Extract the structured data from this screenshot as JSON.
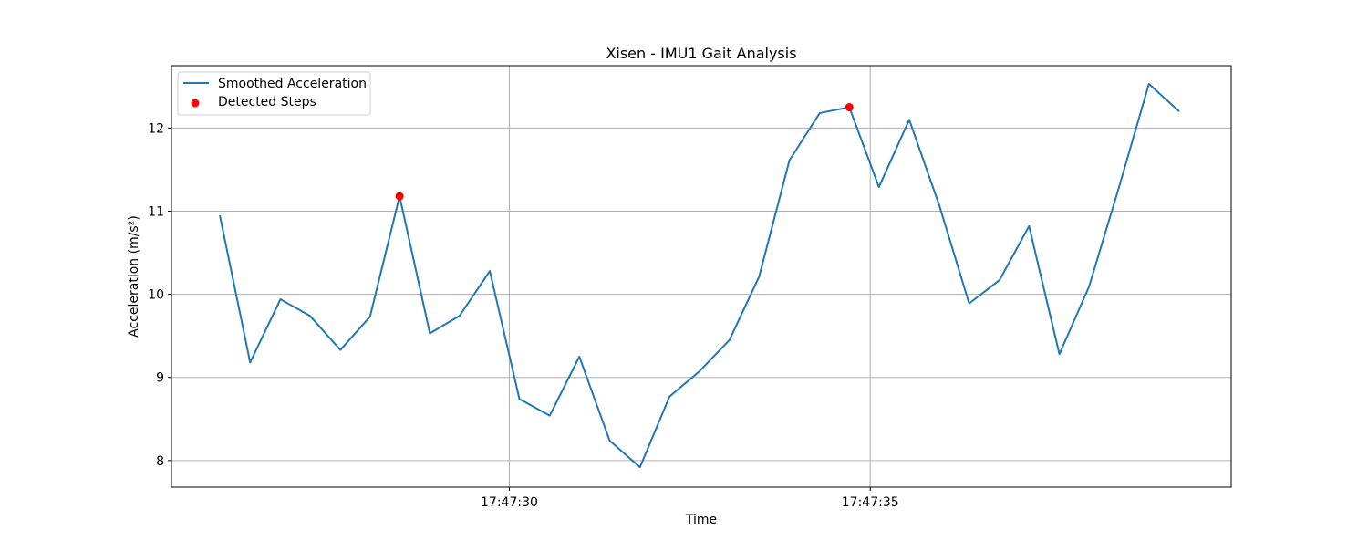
{
  "chart_data": {
    "type": "line",
    "title": "Xisen - IMU1 Gait Analysis",
    "xlabel": "Time",
    "ylabel": "Acceleration (m/s²)",
    "xlim": [
      "17:47:25.32",
      "17:47:40.00"
    ],
    "ylim": [
      7.68,
      12.75
    ],
    "x_ticks": [
      "17:47:30",
      "17:47:35"
    ],
    "y_ticks": [
      8,
      9,
      10,
      11,
      12
    ],
    "grid": true,
    "legend_position": "upper-left",
    "series": [
      {
        "name": "Smoothed Acceleration",
        "kind": "line",
        "color": "#1f77b4",
        "x": [
          "17:47:25.99",
          "17:47:26.41",
          "17:47:26.83",
          "17:47:27.24",
          "17:47:27.66",
          "17:47:28.07",
          "17:47:28.48",
          "17:47:28.90",
          "17:47:29.31",
          "17:47:29.73",
          "17:47:30.14",
          "17:47:30.56",
          "17:47:30.97",
          "17:47:31.39",
          "17:47:31.81",
          "17:47:32.22",
          "17:47:32.63",
          "17:47:33.05",
          "17:47:33.46",
          "17:47:33.88",
          "17:47:34.30",
          "17:47:34.71",
          "17:47:35.12",
          "17:47:35.54",
          "17:47:35.96",
          "17:47:36.37",
          "17:47:36.79",
          "17:47:37.20",
          "17:47:37.62",
          "17:47:38.03",
          "17:47:38.45",
          "17:47:38.86",
          "17:47:39.28"
        ],
        "y": [
          10.95,
          9.18,
          9.94,
          9.74,
          9.33,
          9.73,
          11.18,
          9.53,
          9.74,
          10.28,
          8.74,
          8.54,
          9.25,
          8.24,
          7.92,
          8.77,
          9.07,
          9.45,
          10.21,
          11.61,
          12.18,
          12.25,
          11.29,
          12.1,
          11.06,
          9.89,
          10.17,
          10.82,
          9.28,
          10.09,
          11.3,
          12.53,
          12.2
        ]
      },
      {
        "name": "Detected Steps",
        "kind": "scatter",
        "color": "#ff0000",
        "x": [
          "17:47:28.48",
          "17:47:34.71"
        ],
        "y": [
          11.18,
          12.25
        ]
      }
    ]
  }
}
